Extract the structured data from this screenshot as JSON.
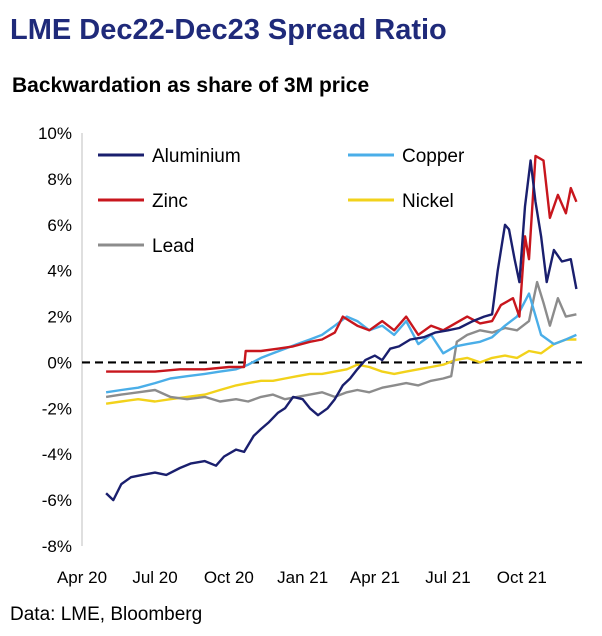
{
  "title": "LME Dec22-Dec23 Spread Ratio",
  "subtitle": "Backwardation as share of 3M price",
  "source": "Data: LME, Bloomberg",
  "chart_data": {
    "type": "line",
    "title": "LME Dec22-Dec23 Spread Ratio",
    "subtitle": "Backwardation as share of 3M price",
    "xlabel": "",
    "ylabel": "",
    "x_unit": "month",
    "x_ticks": [
      "Apr 20",
      "Jul 20",
      "Oct 20",
      "Jan 21",
      "Apr 21",
      "Jul 21",
      "Oct 21"
    ],
    "xlim": [
      "2020-04",
      "2021-12"
    ],
    "y_ticks": [
      "10%",
      "8%",
      "6%",
      "4%",
      "2%",
      "0%",
      "-2%",
      "-4%",
      "-6%",
      "-8%"
    ],
    "ylim": [
      -8,
      10
    ],
    "y_unit": "%",
    "zero_line": "dashed",
    "grid": false,
    "legend_position": "top-left",
    "series": [
      {
        "name": "Aluminium",
        "color": "#1a1f6e",
        "points": [
          [
            "2020-05-01",
            -5.7
          ],
          [
            "2020-05-10",
            -6.0
          ],
          [
            "2020-05-20",
            -5.3
          ],
          [
            "2020-06-01",
            -5.0
          ],
          [
            "2020-06-15",
            -4.9
          ],
          [
            "2020-07-01",
            -4.8
          ],
          [
            "2020-07-15",
            -4.9
          ],
          [
            "2020-08-01",
            -4.6
          ],
          [
            "2020-08-15",
            -4.4
          ],
          [
            "2020-09-01",
            -4.3
          ],
          [
            "2020-09-15",
            -4.5
          ],
          [
            "2020-09-25",
            -4.1
          ],
          [
            "2020-10-10",
            -3.8
          ],
          [
            "2020-10-20",
            -3.9
          ],
          [
            "2020-11-01",
            -3.2
          ],
          [
            "2020-11-10",
            -2.9
          ],
          [
            "2020-11-20",
            -2.6
          ],
          [
            "2020-12-01",
            -2.2
          ],
          [
            "2020-12-10",
            -2.0
          ],
          [
            "2020-12-20",
            -1.5
          ],
          [
            "2021-01-01",
            -1.6
          ],
          [
            "2021-01-10",
            -2.0
          ],
          [
            "2021-01-20",
            -2.3
          ],
          [
            "2021-02-01",
            -2.0
          ],
          [
            "2021-02-10",
            -1.6
          ],
          [
            "2021-02-20",
            -1.0
          ],
          [
            "2021-03-01",
            -0.7
          ],
          [
            "2021-03-10",
            -0.3
          ],
          [
            "2021-03-20",
            0.1
          ],
          [
            "2021-04-01",
            0.3
          ],
          [
            "2021-04-10",
            0.1
          ],
          [
            "2021-04-20",
            0.6
          ],
          [
            "2021-05-01",
            0.7
          ],
          [
            "2021-05-15",
            1.0
          ],
          [
            "2021-06-01",
            1.1
          ],
          [
            "2021-06-15",
            1.3
          ],
          [
            "2021-07-01",
            1.4
          ],
          [
            "2021-07-15",
            1.5
          ],
          [
            "2021-08-01",
            1.8
          ],
          [
            "2021-08-15",
            2.0
          ],
          [
            "2021-08-25",
            2.1
          ],
          [
            "2021-09-01",
            4.0
          ],
          [
            "2021-09-10",
            6.0
          ],
          [
            "2021-09-15",
            5.8
          ],
          [
            "2021-09-22",
            4.5
          ],
          [
            "2021-09-28",
            3.5
          ],
          [
            "2021-10-05",
            6.8
          ],
          [
            "2021-10-12",
            8.8
          ],
          [
            "2021-10-18",
            7.0
          ],
          [
            "2021-10-25",
            5.5
          ],
          [
            "2021-11-01",
            3.5
          ],
          [
            "2021-11-10",
            4.9
          ],
          [
            "2021-11-20",
            4.4
          ],
          [
            "2021-12-01",
            4.5
          ],
          [
            "2021-12-08",
            3.2
          ]
        ]
      },
      {
        "name": "Copper",
        "color": "#4aaee8",
        "points": [
          [
            "2020-05-01",
            -1.3
          ],
          [
            "2020-05-20",
            -1.2
          ],
          [
            "2020-06-10",
            -1.1
          ],
          [
            "2020-07-01",
            -0.9
          ],
          [
            "2020-07-20",
            -0.7
          ],
          [
            "2020-08-10",
            -0.6
          ],
          [
            "2020-09-01",
            -0.5
          ],
          [
            "2020-09-20",
            -0.4
          ],
          [
            "2020-10-10",
            -0.3
          ],
          [
            "2020-10-25",
            -0.1
          ],
          [
            "2020-11-10",
            0.2
          ],
          [
            "2020-11-25",
            0.4
          ],
          [
            "2020-12-10",
            0.6
          ],
          [
            "2020-12-25",
            0.8
          ],
          [
            "2021-01-10",
            1.0
          ],
          [
            "2021-01-25",
            1.2
          ],
          [
            "2021-02-10",
            1.6
          ],
          [
            "2021-02-25",
            2.0
          ],
          [
            "2021-03-10",
            1.8
          ],
          [
            "2021-03-25",
            1.4
          ],
          [
            "2021-04-10",
            1.6
          ],
          [
            "2021-04-25",
            1.2
          ],
          [
            "2021-05-10",
            1.8
          ],
          [
            "2021-05-25",
            0.8
          ],
          [
            "2021-06-10",
            1.2
          ],
          [
            "2021-06-25",
            0.4
          ],
          [
            "2021-07-10",
            0.7
          ],
          [
            "2021-07-25",
            0.8
          ],
          [
            "2021-08-10",
            0.9
          ],
          [
            "2021-08-25",
            1.1
          ],
          [
            "2021-09-10",
            1.6
          ],
          [
            "2021-09-25",
            2.0
          ],
          [
            "2021-10-10",
            3.0
          ],
          [
            "2021-10-25",
            1.2
          ],
          [
            "2021-11-10",
            0.8
          ],
          [
            "2021-11-25",
            1.0
          ],
          [
            "2021-12-08",
            1.2
          ]
        ]
      },
      {
        "name": "Zinc",
        "color": "#c8161d",
        "points": [
          [
            "2020-05-01",
            -0.4
          ],
          [
            "2020-06-01",
            -0.4
          ],
          [
            "2020-07-01",
            -0.4
          ],
          [
            "2020-08-01",
            -0.3
          ],
          [
            "2020-09-01",
            -0.3
          ],
          [
            "2020-10-01",
            -0.2
          ],
          [
            "2020-10-20",
            -0.2
          ],
          [
            "2020-10-22",
            0.5
          ],
          [
            "2020-11-10",
            0.5
          ],
          [
            "2020-12-01",
            0.6
          ],
          [
            "2020-12-20",
            0.7
          ],
          [
            "2021-01-10",
            0.9
          ],
          [
            "2021-01-25",
            1.0
          ],
          [
            "2021-02-10",
            1.3
          ],
          [
            "2021-02-20",
            2.0
          ],
          [
            "2021-03-10",
            1.6
          ],
          [
            "2021-03-25",
            1.4
          ],
          [
            "2021-04-10",
            1.8
          ],
          [
            "2021-04-25",
            1.4
          ],
          [
            "2021-05-10",
            2.0
          ],
          [
            "2021-05-25",
            1.2
          ],
          [
            "2021-06-10",
            1.6
          ],
          [
            "2021-06-25",
            1.4
          ],
          [
            "2021-07-10",
            1.7
          ],
          [
            "2021-07-25",
            2.0
          ],
          [
            "2021-08-10",
            1.7
          ],
          [
            "2021-08-25",
            1.8
          ],
          [
            "2021-09-05",
            2.5
          ],
          [
            "2021-09-20",
            2.8
          ],
          [
            "2021-09-28",
            2.0
          ],
          [
            "2021-10-05",
            5.5
          ],
          [
            "2021-10-10",
            4.5
          ],
          [
            "2021-10-18",
            9.0
          ],
          [
            "2021-10-28",
            8.8
          ],
          [
            "2021-11-05",
            6.3
          ],
          [
            "2021-11-15",
            7.3
          ],
          [
            "2021-11-25",
            6.5
          ],
          [
            "2021-12-01",
            7.6
          ],
          [
            "2021-12-08",
            7.0
          ]
        ]
      },
      {
        "name": "Nickel",
        "color": "#f2d21b",
        "points": [
          [
            "2020-05-01",
            -1.8
          ],
          [
            "2020-05-20",
            -1.7
          ],
          [
            "2020-06-10",
            -1.6
          ],
          [
            "2020-07-01",
            -1.7
          ],
          [
            "2020-07-20",
            -1.6
          ],
          [
            "2020-08-10",
            -1.5
          ],
          [
            "2020-09-01",
            -1.4
          ],
          [
            "2020-09-20",
            -1.2
          ],
          [
            "2020-10-10",
            -1.0
          ],
          [
            "2020-10-25",
            -0.9
          ],
          [
            "2020-11-10",
            -0.8
          ],
          [
            "2020-11-25",
            -0.8
          ],
          [
            "2020-12-10",
            -0.7
          ],
          [
            "2020-12-25",
            -0.6
          ],
          [
            "2021-01-10",
            -0.5
          ],
          [
            "2021-01-25",
            -0.5
          ],
          [
            "2021-02-10",
            -0.4
          ],
          [
            "2021-02-25",
            -0.3
          ],
          [
            "2021-03-10",
            -0.1
          ],
          [
            "2021-03-25",
            -0.2
          ],
          [
            "2021-04-10",
            -0.4
          ],
          [
            "2021-04-25",
            -0.5
          ],
          [
            "2021-05-10",
            -0.4
          ],
          [
            "2021-05-25",
            -0.3
          ],
          [
            "2021-06-10",
            -0.2
          ],
          [
            "2021-06-25",
            -0.1
          ],
          [
            "2021-07-10",
            0.1
          ],
          [
            "2021-07-25",
            0.2
          ],
          [
            "2021-08-10",
            0.0
          ],
          [
            "2021-08-25",
            0.2
          ],
          [
            "2021-09-10",
            0.3
          ],
          [
            "2021-09-25",
            0.2
          ],
          [
            "2021-10-10",
            0.5
          ],
          [
            "2021-10-25",
            0.4
          ],
          [
            "2021-11-10",
            0.8
          ],
          [
            "2021-11-25",
            1.0
          ],
          [
            "2021-12-08",
            1.0
          ]
        ]
      },
      {
        "name": "Lead",
        "color": "#8c8c8c",
        "points": [
          [
            "2020-05-01",
            -1.5
          ],
          [
            "2020-05-20",
            -1.4
          ],
          [
            "2020-06-10",
            -1.3
          ],
          [
            "2020-07-01",
            -1.2
          ],
          [
            "2020-07-20",
            -1.5
          ],
          [
            "2020-08-10",
            -1.6
          ],
          [
            "2020-09-01",
            -1.5
          ],
          [
            "2020-09-20",
            -1.7
          ],
          [
            "2020-10-10",
            -1.6
          ],
          [
            "2020-10-25",
            -1.7
          ],
          [
            "2020-11-10",
            -1.5
          ],
          [
            "2020-11-25",
            -1.4
          ],
          [
            "2020-12-10",
            -1.6
          ],
          [
            "2020-12-25",
            -1.5
          ],
          [
            "2021-01-10",
            -1.4
          ],
          [
            "2021-01-25",
            -1.3
          ],
          [
            "2021-02-10",
            -1.5
          ],
          [
            "2021-02-25",
            -1.3
          ],
          [
            "2021-03-10",
            -1.2
          ],
          [
            "2021-03-25",
            -1.3
          ],
          [
            "2021-04-10",
            -1.1
          ],
          [
            "2021-04-25",
            -1.0
          ],
          [
            "2021-05-10",
            -0.9
          ],
          [
            "2021-05-25",
            -1.0
          ],
          [
            "2021-06-10",
            -0.8
          ],
          [
            "2021-06-25",
            -0.7
          ],
          [
            "2021-07-05",
            -0.6
          ],
          [
            "2021-07-12",
            0.9
          ],
          [
            "2021-07-25",
            1.2
          ],
          [
            "2021-08-10",
            1.4
          ],
          [
            "2021-08-25",
            1.3
          ],
          [
            "2021-09-10",
            1.5
          ],
          [
            "2021-09-25",
            1.4
          ],
          [
            "2021-10-10",
            1.8
          ],
          [
            "2021-10-20",
            3.5
          ],
          [
            "2021-10-28",
            2.6
          ],
          [
            "2021-11-05",
            1.6
          ],
          [
            "2021-11-15",
            2.8
          ],
          [
            "2021-11-25",
            2.0
          ],
          [
            "2021-12-08",
            2.1
          ]
        ]
      }
    ]
  }
}
